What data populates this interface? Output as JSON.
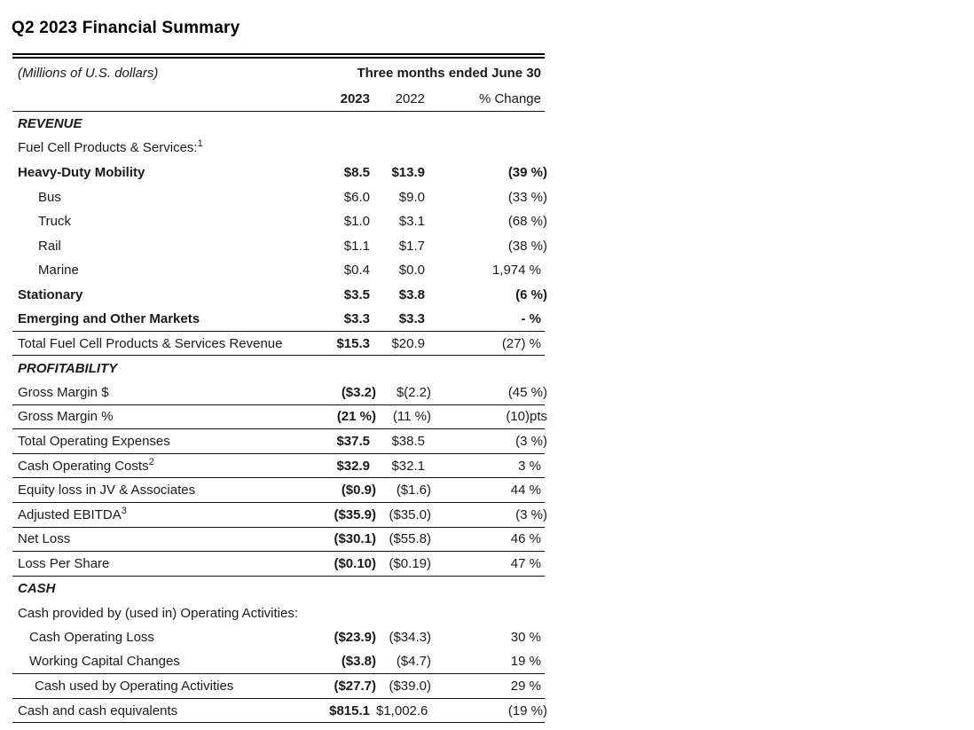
{
  "page_title": "Q2 2023 Financial Summary",
  "table": {
    "unit_note": "(Millions of U.S. dollars)",
    "period_header": "Three months ended June 30",
    "columns": [
      "2023",
      "2022",
      "% Change"
    ],
    "rows": [
      {
        "type": "section",
        "label": "REVENUE"
      },
      {
        "type": "text",
        "label": "Fuel Cell Products & Services:",
        "sup": "1"
      },
      {
        "type": "data",
        "label": "Heavy-Duty Mobility",
        "v2023": "$8.5",
        "v2022": "$13.9",
        "chg": "(39 %)",
        "bold": true
      },
      {
        "type": "data",
        "label": "Bus",
        "indent": 3,
        "v2023": "$6.0",
        "v2022": "$9.0",
        "chg": "(33 %)"
      },
      {
        "type": "data",
        "label": "Truck",
        "indent": 3,
        "v2023": "$1.0",
        "v2022": "$3.1",
        "chg": "(68 %)"
      },
      {
        "type": "data",
        "label": "Rail",
        "indent": 3,
        "v2023": "$1.1",
        "v2022": "$1.7",
        "chg": "(38 %)"
      },
      {
        "type": "data",
        "label": "Marine",
        "indent": 3,
        "v2023": "$0.4",
        "v2022": "$0.0",
        "chg": "1,974 %"
      },
      {
        "type": "data",
        "label": "Stationary",
        "v2023": "$3.5",
        "v2022": "$3.8",
        "chg": "(6 %)",
        "bold": true
      },
      {
        "type": "data",
        "label": "Emerging and Other Markets",
        "v2023": "$3.3",
        "v2022": "$3.3",
        "chg": "- %",
        "bold": true,
        "rule": true
      },
      {
        "type": "data",
        "label": "Total Fuel Cell Products & Services Revenue",
        "v2023": "$15.3",
        "v2022": "$20.9",
        "chg": "(27) %",
        "b1": true,
        "rule": true
      },
      {
        "type": "section",
        "label": "PROFITABILITY"
      },
      {
        "type": "data",
        "label": "Gross Margin $",
        "v2023": "($3.2)",
        "v2022": "$(2.2)",
        "chg": "(45 %)",
        "b1": true,
        "rule": true
      },
      {
        "type": "data",
        "label": "Gross Margin %",
        "v2023": "(21 %)",
        "v2022": "(11 %)",
        "chg": "(10)pts",
        "b1": true,
        "rule": true
      },
      {
        "type": "data",
        "label": "Total Operating Expenses",
        "v2023": "$37.5",
        "v2022": "$38.5",
        "chg": "(3 %)",
        "b1": true,
        "rule": true
      },
      {
        "type": "data",
        "label": "Cash Operating Costs",
        "sup": "2",
        "v2023": "$32.9",
        "v2022": "$32.1",
        "chg": "3 %",
        "b1": true,
        "rule": true
      },
      {
        "type": "data",
        "label": "Equity loss in JV & Associates",
        "v2023": "($0.9)",
        "v2022": "($1.6)",
        "chg": "44 %",
        "b1": true,
        "rule": true
      },
      {
        "type": "data",
        "label": "Adjusted EBITDA",
        "sup": "3",
        "v2023": "($35.9)",
        "v2022": "($35.0)",
        "chg": "(3 %)",
        "b1": true,
        "rule": true
      },
      {
        "type": "data",
        "label": "Net Loss",
        "v2023": "($30.1)",
        "v2022": "($55.8)",
        "chg": "46 %",
        "b1": true,
        "rule": true
      },
      {
        "type": "data",
        "label": "Loss Per Share",
        "v2023": "($0.10)",
        "v2022": "($0.19)",
        "chg": "47 %",
        "b1": true,
        "rule": true
      },
      {
        "type": "section",
        "label": "CASH"
      },
      {
        "type": "text",
        "label": "Cash provided by (used in) Operating Activities:"
      },
      {
        "type": "data",
        "label": "Cash Operating Loss",
        "indent": 1,
        "v2023": "($23.9)",
        "v2022": "($34.3)",
        "chg": "30 %",
        "b1": true
      },
      {
        "type": "data",
        "label": "Working Capital Changes",
        "indent": 1,
        "v2023": "($3.8)",
        "v2022": "($4.7)",
        "chg": "19 %",
        "b1": true,
        "rule": true
      },
      {
        "type": "data",
        "label": "Cash used by Operating Activities",
        "indent": 2,
        "v2023": "($27.7)",
        "v2022": "($39.0)",
        "chg": "29 %",
        "b1": true,
        "rule": true
      },
      {
        "type": "data",
        "label": "Cash and cash equivalents",
        "v2023": "$815.1",
        "v2022": "$1,002.6",
        "chg": "(19 %)",
        "b1": true,
        "rule": true
      }
    ]
  }
}
